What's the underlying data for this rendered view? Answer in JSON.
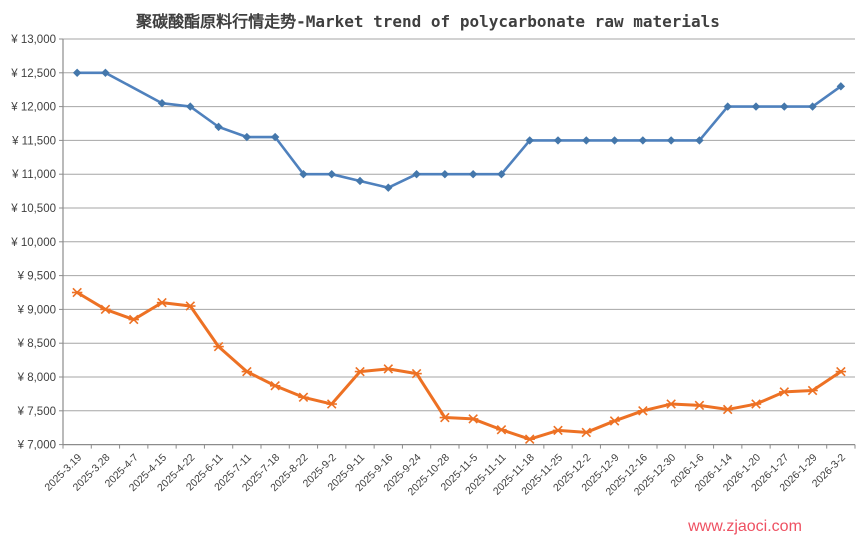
{
  "title": "聚碳酸酯原料行情走势-Market trend of polycarbonate raw materials",
  "watermark": "www.zjaoci.com",
  "colors": {
    "blue_series": "#4f81bd",
    "blue_marker": "#4477ab",
    "orange_series": "#ed7124",
    "gridline": "#a6a6a6",
    "axis": "#8c8c8c",
    "axis_text": "#404040",
    "title_text": "#3f3f3f",
    "watermark_text": "#ee5162"
  },
  "chart_data": {
    "type": "line",
    "title": "聚碳酸酯原料行情走势-Market trend of polycarbonate raw materials",
    "xlabel": "",
    "ylabel": "",
    "ylim": [
      7000,
      13000
    ],
    "ytick_step": 500,
    "grid": true,
    "legend_position": "none",
    "y_tick_labels": [
      "¥ 13,000",
      "¥ 12,500",
      "¥ 12,000",
      "¥ 11,500",
      "¥ 11,000",
      "¥ 10,500",
      "¥ 10,000",
      "¥ 9,500",
      "¥ 9,000",
      "¥ 8,500",
      "¥ 8,000",
      "¥ 7,500",
      "¥ 7,000"
    ],
    "categories": [
      "2025-3.19",
      "2025-3.28",
      "2025-4-7",
      "2025-4-15",
      "2025-4-22",
      "2025-6-11",
      "2025-7-11",
      "2025-7-18",
      "2025-8-22",
      "2025-9-2",
      "2025-9-11",
      "2025-9-16",
      "2025-9-24",
      "2025-10-28",
      "2025-11-5",
      "2025-11-11",
      "2025-11-18",
      "2025-11-25",
      "2025-12-2",
      "2025-12-9",
      "2025-12-16",
      "2025-12-30",
      "2026-1-6",
      "2026-1-14",
      "2026-1-20",
      "2026-1-27",
      "2026-1-29",
      "2026-3-2"
    ],
    "series": [
      {
        "name": "blue-series",
        "marker": "diamond",
        "values": [
          12500,
          12500,
          null,
          12050,
          12000,
          11700,
          11550,
          11550,
          11000,
          11000,
          10900,
          10800,
          11000,
          11000,
          11000,
          11000,
          11500,
          11500,
          11500,
          11500,
          11500,
          11500,
          11500,
          12000,
          12000,
          12000,
          12000,
          12300
        ]
      },
      {
        "name": "orange-series",
        "marker": "star",
        "values": [
          9250,
          9000,
          8850,
          9100,
          9050,
          8450,
          8080,
          7870,
          7700,
          7600,
          8080,
          8120,
          8050,
          7400,
          7380,
          7220,
          7080,
          7210,
          7180,
          7350,
          7500,
          7600,
          7580,
          7520,
          7600,
          7780,
          7800,
          8080
        ]
      }
    ]
  }
}
